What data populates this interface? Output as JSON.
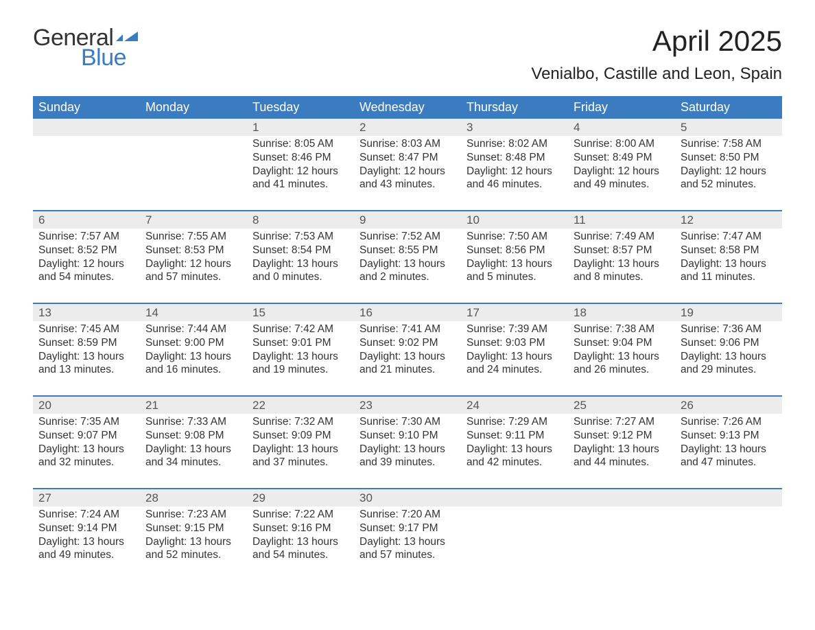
{
  "brand": {
    "word1": "General",
    "word2": "Blue",
    "flag_color": "#3b7bbf",
    "text_color_dark": "#333333",
    "text_color_blue": "#3b7bbf"
  },
  "title": "April 2025",
  "subtitle": "Venialbo, Castille and Leon, Spain",
  "colors": {
    "header_bg": "#3b7bbf",
    "header_text": "#ffffff",
    "daynum_bg": "#ececec",
    "daynum_text": "#555555",
    "body_text": "#333333",
    "week_divider": "#3b7bbf",
    "page_bg": "#ffffff"
  },
  "day_labels": [
    "Sunday",
    "Monday",
    "Tuesday",
    "Wednesday",
    "Thursday",
    "Friday",
    "Saturday"
  ],
  "weeks": [
    {
      "days": [
        {
          "num": "",
          "sunrise": "",
          "sunset": "",
          "daylight1": "",
          "daylight2": ""
        },
        {
          "num": "",
          "sunrise": "",
          "sunset": "",
          "daylight1": "",
          "daylight2": ""
        },
        {
          "num": "1",
          "sunrise": "Sunrise: 8:05 AM",
          "sunset": "Sunset: 8:46 PM",
          "daylight1": "Daylight: 12 hours",
          "daylight2": "and 41 minutes."
        },
        {
          "num": "2",
          "sunrise": "Sunrise: 8:03 AM",
          "sunset": "Sunset: 8:47 PM",
          "daylight1": "Daylight: 12 hours",
          "daylight2": "and 43 minutes."
        },
        {
          "num": "3",
          "sunrise": "Sunrise: 8:02 AM",
          "sunset": "Sunset: 8:48 PM",
          "daylight1": "Daylight: 12 hours",
          "daylight2": "and 46 minutes."
        },
        {
          "num": "4",
          "sunrise": "Sunrise: 8:00 AM",
          "sunset": "Sunset: 8:49 PM",
          "daylight1": "Daylight: 12 hours",
          "daylight2": "and 49 minutes."
        },
        {
          "num": "5",
          "sunrise": "Sunrise: 7:58 AM",
          "sunset": "Sunset: 8:50 PM",
          "daylight1": "Daylight: 12 hours",
          "daylight2": "and 52 minutes."
        }
      ]
    },
    {
      "days": [
        {
          "num": "6",
          "sunrise": "Sunrise: 7:57 AM",
          "sunset": "Sunset: 8:52 PM",
          "daylight1": "Daylight: 12 hours",
          "daylight2": "and 54 minutes."
        },
        {
          "num": "7",
          "sunrise": "Sunrise: 7:55 AM",
          "sunset": "Sunset: 8:53 PM",
          "daylight1": "Daylight: 12 hours",
          "daylight2": "and 57 minutes."
        },
        {
          "num": "8",
          "sunrise": "Sunrise: 7:53 AM",
          "sunset": "Sunset: 8:54 PM",
          "daylight1": "Daylight: 13 hours",
          "daylight2": "and 0 minutes."
        },
        {
          "num": "9",
          "sunrise": "Sunrise: 7:52 AM",
          "sunset": "Sunset: 8:55 PM",
          "daylight1": "Daylight: 13 hours",
          "daylight2": "and 2 minutes."
        },
        {
          "num": "10",
          "sunrise": "Sunrise: 7:50 AM",
          "sunset": "Sunset: 8:56 PM",
          "daylight1": "Daylight: 13 hours",
          "daylight2": "and 5 minutes."
        },
        {
          "num": "11",
          "sunrise": "Sunrise: 7:49 AM",
          "sunset": "Sunset: 8:57 PM",
          "daylight1": "Daylight: 13 hours",
          "daylight2": "and 8 minutes."
        },
        {
          "num": "12",
          "sunrise": "Sunrise: 7:47 AM",
          "sunset": "Sunset: 8:58 PM",
          "daylight1": "Daylight: 13 hours",
          "daylight2": "and 11 minutes."
        }
      ]
    },
    {
      "days": [
        {
          "num": "13",
          "sunrise": "Sunrise: 7:45 AM",
          "sunset": "Sunset: 8:59 PM",
          "daylight1": "Daylight: 13 hours",
          "daylight2": "and 13 minutes."
        },
        {
          "num": "14",
          "sunrise": "Sunrise: 7:44 AM",
          "sunset": "Sunset: 9:00 PM",
          "daylight1": "Daylight: 13 hours",
          "daylight2": "and 16 minutes."
        },
        {
          "num": "15",
          "sunrise": "Sunrise: 7:42 AM",
          "sunset": "Sunset: 9:01 PM",
          "daylight1": "Daylight: 13 hours",
          "daylight2": "and 19 minutes."
        },
        {
          "num": "16",
          "sunrise": "Sunrise: 7:41 AM",
          "sunset": "Sunset: 9:02 PM",
          "daylight1": "Daylight: 13 hours",
          "daylight2": "and 21 minutes."
        },
        {
          "num": "17",
          "sunrise": "Sunrise: 7:39 AM",
          "sunset": "Sunset: 9:03 PM",
          "daylight1": "Daylight: 13 hours",
          "daylight2": "and 24 minutes."
        },
        {
          "num": "18",
          "sunrise": "Sunrise: 7:38 AM",
          "sunset": "Sunset: 9:04 PM",
          "daylight1": "Daylight: 13 hours",
          "daylight2": "and 26 minutes."
        },
        {
          "num": "19",
          "sunrise": "Sunrise: 7:36 AM",
          "sunset": "Sunset: 9:06 PM",
          "daylight1": "Daylight: 13 hours",
          "daylight2": "and 29 minutes."
        }
      ]
    },
    {
      "days": [
        {
          "num": "20",
          "sunrise": "Sunrise: 7:35 AM",
          "sunset": "Sunset: 9:07 PM",
          "daylight1": "Daylight: 13 hours",
          "daylight2": "and 32 minutes."
        },
        {
          "num": "21",
          "sunrise": "Sunrise: 7:33 AM",
          "sunset": "Sunset: 9:08 PM",
          "daylight1": "Daylight: 13 hours",
          "daylight2": "and 34 minutes."
        },
        {
          "num": "22",
          "sunrise": "Sunrise: 7:32 AM",
          "sunset": "Sunset: 9:09 PM",
          "daylight1": "Daylight: 13 hours",
          "daylight2": "and 37 minutes."
        },
        {
          "num": "23",
          "sunrise": "Sunrise: 7:30 AM",
          "sunset": "Sunset: 9:10 PM",
          "daylight1": "Daylight: 13 hours",
          "daylight2": "and 39 minutes."
        },
        {
          "num": "24",
          "sunrise": "Sunrise: 7:29 AM",
          "sunset": "Sunset: 9:11 PM",
          "daylight1": "Daylight: 13 hours",
          "daylight2": "and 42 minutes."
        },
        {
          "num": "25",
          "sunrise": "Sunrise: 7:27 AM",
          "sunset": "Sunset: 9:12 PM",
          "daylight1": "Daylight: 13 hours",
          "daylight2": "and 44 minutes."
        },
        {
          "num": "26",
          "sunrise": "Sunrise: 7:26 AM",
          "sunset": "Sunset: 9:13 PM",
          "daylight1": "Daylight: 13 hours",
          "daylight2": "and 47 minutes."
        }
      ]
    },
    {
      "days": [
        {
          "num": "27",
          "sunrise": "Sunrise: 7:24 AM",
          "sunset": "Sunset: 9:14 PM",
          "daylight1": "Daylight: 13 hours",
          "daylight2": "and 49 minutes."
        },
        {
          "num": "28",
          "sunrise": "Sunrise: 7:23 AM",
          "sunset": "Sunset: 9:15 PM",
          "daylight1": "Daylight: 13 hours",
          "daylight2": "and 52 minutes."
        },
        {
          "num": "29",
          "sunrise": "Sunrise: 7:22 AM",
          "sunset": "Sunset: 9:16 PM",
          "daylight1": "Daylight: 13 hours",
          "daylight2": "and 54 minutes."
        },
        {
          "num": "30",
          "sunrise": "Sunrise: 7:20 AM",
          "sunset": "Sunset: 9:17 PM",
          "daylight1": "Daylight: 13 hours",
          "daylight2": "and 57 minutes."
        },
        {
          "num": "",
          "sunrise": "",
          "sunset": "",
          "daylight1": "",
          "daylight2": ""
        },
        {
          "num": "",
          "sunrise": "",
          "sunset": "",
          "daylight1": "",
          "daylight2": ""
        },
        {
          "num": "",
          "sunrise": "",
          "sunset": "",
          "daylight1": "",
          "daylight2": ""
        }
      ]
    }
  ]
}
